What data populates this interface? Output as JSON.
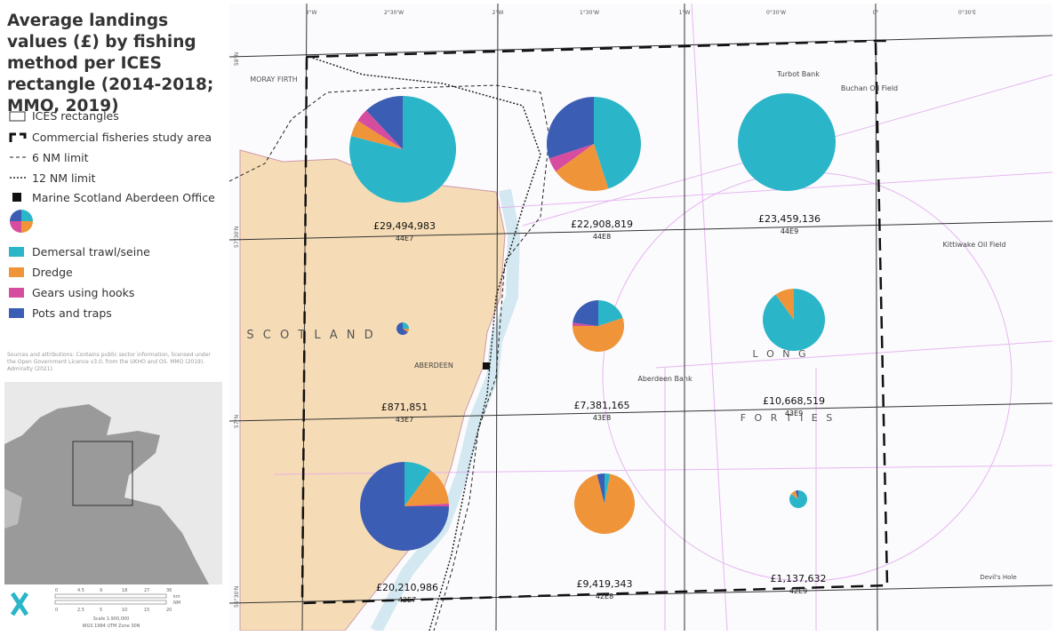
{
  "title": "Average landings values (£) by fishing method per ICES rectangle (2014-2018; MMO, 2019)",
  "legend": {
    "ices": "ICES rectangles",
    "study_area": "Commercial fisheries study area",
    "nm6": "6 NM limit",
    "nm12": "12 NM limit",
    "office": "Marine Scotland Aberdeen Office"
  },
  "methods": [
    {
      "name": "Demersal trawl/seine",
      "color": "#2bb5c8"
    },
    {
      "name": "Dredge",
      "color": "#f0943a"
    },
    {
      "name": "Gears using hooks",
      "color": "#d64d9f"
    },
    {
      "name": "Pots and traps",
      "color": "#3b5db3"
    }
  ],
  "sources": "Sources and attributions: Contains public sector information, licensed under the Open Government Licence v3.0, from the UKHO and OS. MMO (2019). Admiralty (2021).",
  "scale": {
    "km_ticks": [
      "0",
      "4.5",
      "9",
      "18",
      "27",
      "36"
    ],
    "km_unit": "km",
    "nm_ticks": [
      "0",
      "2.5",
      "5",
      "10",
      "15",
      "20"
    ],
    "nm_unit": "NM",
    "scale_text": "Scale 1:900,000",
    "projection": "WGS 1984 UTM Zone 30N"
  },
  "rectangles": [
    {
      "id": "44E7",
      "total": "£29,494,983",
      "shares": [
        79,
        5,
        4,
        12
      ]
    },
    {
      "id": "44E8",
      "total": "£22,908,819",
      "shares": [
        45,
        20,
        5,
        30
      ]
    },
    {
      "id": "44E9",
      "total": "£23,459,136",
      "shares": [
        100,
        0,
        0,
        0
      ]
    },
    {
      "id": "43E7",
      "total": "£871,851",
      "shares": [
        25,
        10,
        0,
        65
      ]
    },
    {
      "id": "43E8",
      "total": "£7,381,165",
      "shares": [
        20,
        55,
        2,
        23
      ]
    },
    {
      "id": "43E9",
      "total": "£10,668,519",
      "shares": [
        90,
        10,
        0,
        0
      ]
    },
    {
      "id": "42E7",
      "total": "£20,210,986",
      "shares": [
        10,
        14,
        1,
        75
      ]
    },
    {
      "id": "42E8",
      "total": "£9,419,343",
      "shares": [
        3,
        93,
        0,
        4
      ]
    },
    {
      "id": "42E9",
      "total": "£1,137,632",
      "shares": [
        85,
        10,
        0,
        5
      ]
    }
  ],
  "map_labels": [
    "MORAY FIRTH",
    "S C O T L A N D",
    "ABERDEEN",
    "L O N G",
    "F O R T I E S",
    "Aberdeen Bank",
    "Turbot Bank",
    "Buchan Oil Field",
    "Kittiwake Oil Field",
    "Devil's Hole",
    "3°W",
    "2°30'W",
    "2°W",
    "1°30'W",
    "1°W",
    "0°30'W",
    "0°",
    "0°30'E",
    "58°N",
    "57°30'N",
    "57°N",
    "56°30'N"
  ]
}
